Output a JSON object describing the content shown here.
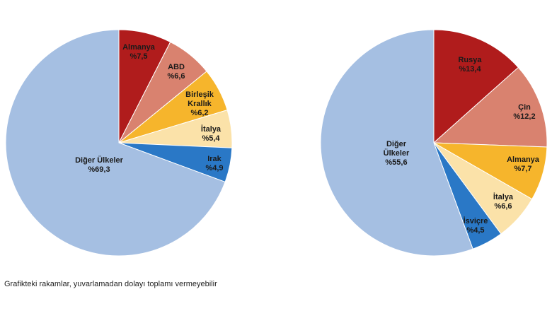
{
  "chart_data": [
    {
      "type": "pie",
      "slices": [
        {
          "label": "Almanya",
          "value_text": "%7,5",
          "value": 7.5,
          "color": "#b01c1c"
        },
        {
          "label": "ABD",
          "value_text": "%6,6",
          "value": 6.6,
          "color": "#d9826f"
        },
        {
          "label": "Birleşik Krallık",
          "value_text": "%6,2",
          "value": 6.2,
          "color": "#f6b52c"
        },
        {
          "label": "İtalya",
          "value_text": "%5,4",
          "value": 5.4,
          "color": "#fbe2a9"
        },
        {
          "label": "Irak",
          "value_text": "%4,9",
          "value": 4.9,
          "color": "#2a78c6"
        },
        {
          "label": "Diğer Ülkeler",
          "value_text": "%69,3",
          "value": 69.3,
          "color": "#a5bfe2"
        }
      ]
    },
    {
      "type": "pie",
      "slices": [
        {
          "label": "Rusya",
          "value_text": "%13,4",
          "value": 13.4,
          "color": "#b01c1c"
        },
        {
          "label": "Çin",
          "value_text": "%12,2",
          "value": 12.2,
          "color": "#d9826f"
        },
        {
          "label": "Almanya",
          "value_text": "%7,7",
          "value": 7.7,
          "color": "#f6b52c"
        },
        {
          "label": "İtalya",
          "value_text": "%6,6",
          "value": 6.6,
          "color": "#fbe2a9"
        },
        {
          "label": "İsviçre",
          "value_text": "%4,5",
          "value": 4.5,
          "color": "#2a78c6"
        },
        {
          "label": "Diğer Ülkeler",
          "value_text": "%55,6",
          "value": 55.6,
          "color": "#a5bfe2"
        }
      ]
    }
  ],
  "footnote": "Grafikteki rakamlar, yuvarlamadan dolayı toplamı vermeyebilir"
}
